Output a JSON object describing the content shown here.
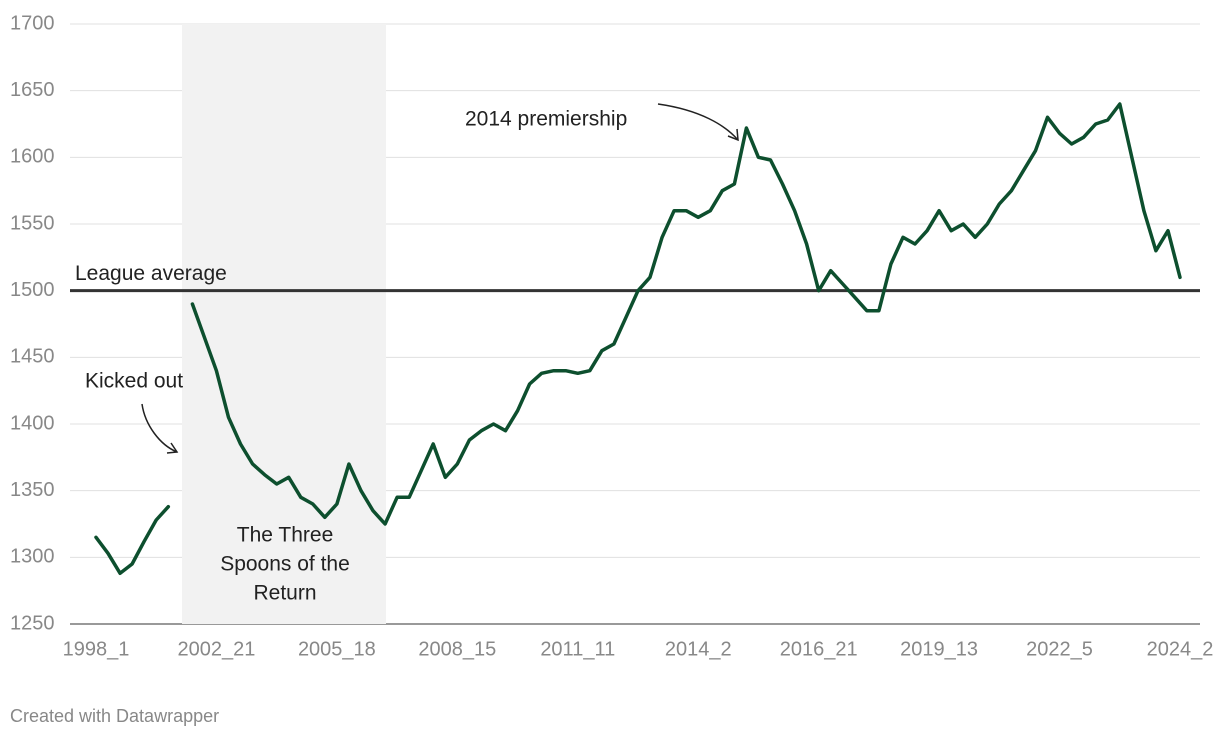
{
  "chart_data": {
    "type": "line",
    "categories": [
      "1998_1",
      null,
      null,
      null,
      null,
      null,
      null,
      null,
      null,
      null,
      "2002_21",
      null,
      null,
      null,
      null,
      null,
      null,
      null,
      null,
      null,
      "2005_18",
      null,
      null,
      null,
      null,
      null,
      null,
      null,
      null,
      null,
      "2008_15",
      null,
      null,
      null,
      null,
      null,
      null,
      null,
      null,
      null,
      "2011_11",
      null,
      null,
      null,
      null,
      null,
      null,
      null,
      null,
      null,
      "2014_2",
      null,
      null,
      null,
      null,
      null,
      null,
      null,
      null,
      null,
      "2016_21",
      null,
      null,
      null,
      null,
      null,
      null,
      null,
      null,
      null,
      "2019_13",
      null,
      null,
      null,
      null,
      null,
      null,
      null,
      null,
      null,
      "2022_5",
      null,
      null,
      null,
      null,
      null,
      null,
      null,
      null,
      null,
      "2024_2"
    ],
    "series": [
      {
        "color": "#0d4f2e",
        "values": [
          1315,
          1303,
          1288,
          1295,
          1312,
          1328,
          1338,
          null,
          1490,
          1465,
          1440,
          1405,
          1385,
          1370,
          1362,
          1355,
          1360,
          1345,
          1340,
          1330,
          1340,
          1370,
          1350,
          1335,
          1325,
          1345,
          1345,
          1365,
          1385,
          1360,
          1370,
          1388,
          1395,
          1400,
          1395,
          1410,
          1430,
          1438,
          1440,
          1440,
          1438,
          1440,
          1455,
          1460,
          1480,
          1500,
          1510,
          1540,
          1560,
          1560,
          1555,
          1560,
          1575,
          1580,
          1622,
          1600,
          1598,
          1580,
          1560,
          1535,
          1500,
          1515,
          1505,
          1495,
          1485,
          1485,
          1520,
          1540,
          1535,
          1545,
          1560,
          1545,
          1550,
          1540,
          1550,
          1565,
          1575,
          1590,
          1605,
          1630,
          1618,
          1610,
          1615,
          1625,
          1628,
          1640,
          1600,
          1560,
          1530,
          1545,
          1510
        ]
      }
    ],
    "ylim": [
      1250,
      1700
    ],
    "yticks": [
      1250,
      1300,
      1350,
      1400,
      1450,
      1500,
      1550,
      1600,
      1650,
      1700
    ],
    "grid": true,
    "reference_line": {
      "value": 1500,
      "label": "League average"
    },
    "annotations": {
      "kicked_out": "Kicked out",
      "premiership": "2014 premiership",
      "spoons": [
        "The Three",
        "Spoons of the",
        "Return"
      ]
    },
    "footer": "Created with Datawrapper"
  }
}
